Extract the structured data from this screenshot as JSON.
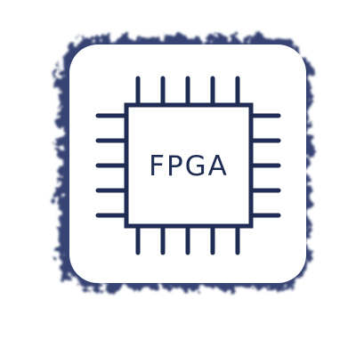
{
  "icon": {
    "name": "fpga-chip-icon",
    "label": "FPGA"
  },
  "colors": {
    "chip_stroke": "#1f2d55",
    "tile_background": "#ffffff",
    "shadow": "#2a3a6b",
    "page_background": "#ffffff"
  }
}
